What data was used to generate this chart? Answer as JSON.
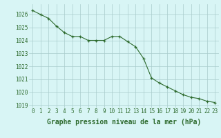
{
  "x": [
    0,
    1,
    2,
    3,
    4,
    5,
    6,
    7,
    8,
    9,
    10,
    11,
    12,
    13,
    14,
    15,
    16,
    17,
    18,
    19,
    20,
    21,
    22,
    23
  ],
  "y": [
    1026.3,
    1026.0,
    1025.7,
    1025.1,
    1024.6,
    1024.3,
    1024.3,
    1024.0,
    1024.0,
    1024.0,
    1024.3,
    1024.3,
    1023.9,
    1023.5,
    1022.6,
    1021.1,
    1020.7,
    1020.4,
    1020.1,
    1019.8,
    1019.6,
    1019.5,
    1019.3,
    1019.2
  ],
  "line_color": "#2d6a2d",
  "marker_color": "#2d6a2d",
  "bg_color": "#d8f5f5",
  "grid_color": "#aacccc",
  "xlabel": "Graphe pression niveau de la mer (hPa)",
  "xlabel_color": "#2d6a2d",
  "tick_color": "#2d6a2d",
  "ylim_min": 1018.8,
  "ylim_max": 1026.8,
  "yticks": [
    1019,
    1020,
    1021,
    1022,
    1023,
    1024,
    1025,
    1026
  ],
  "xticks": [
    0,
    1,
    2,
    3,
    4,
    5,
    6,
    7,
    8,
    9,
    10,
    11,
    12,
    13,
    14,
    15,
    16,
    17,
    18,
    19,
    20,
    21,
    22,
    23
  ],
  "tick_fontsize": 5.5,
  "label_fontsize": 7.0
}
